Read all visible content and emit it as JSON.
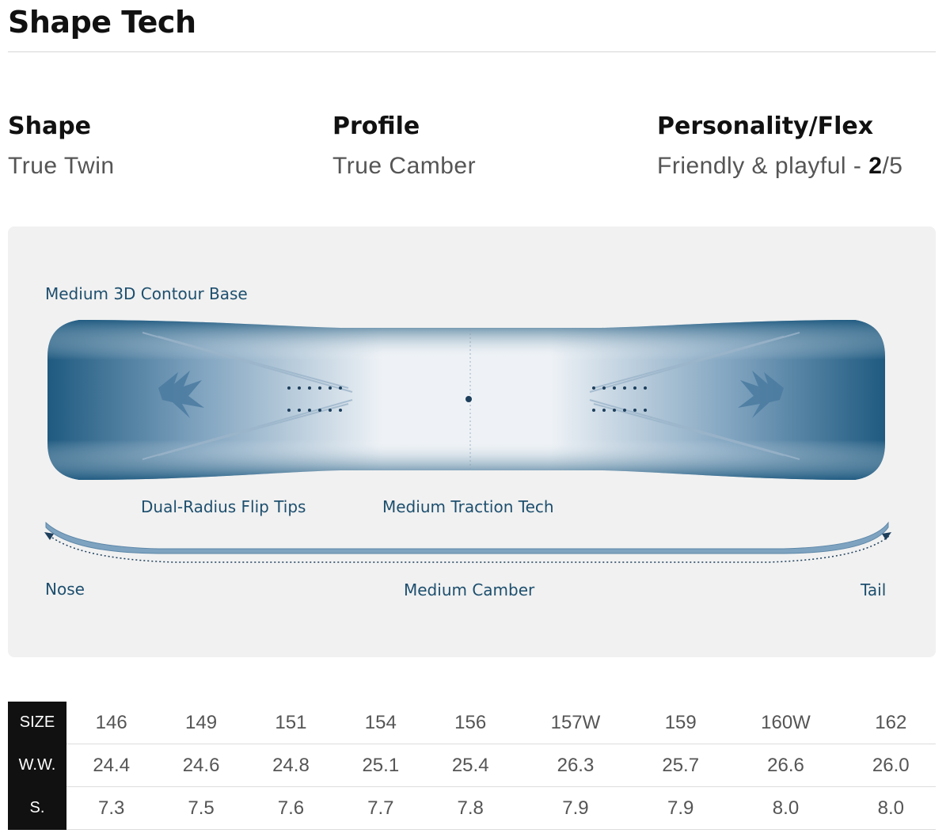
{
  "header": {
    "title": "Shape Tech"
  },
  "specs": [
    {
      "label": "Shape",
      "value": "True Twin"
    },
    {
      "label": "Profile",
      "value": "True Camber"
    },
    {
      "label": "Personality/Flex",
      "value": "Friendly & playful -",
      "rating": "2",
      "max": "/5"
    }
  ],
  "diagram": {
    "contour": "Medium 3D Contour Base",
    "tips": "Dual-Radius Flip Tips",
    "traction": "Medium Traction Tech",
    "nose": "Nose",
    "camber": "Medium Camber",
    "tail": "Tail"
  },
  "table": {
    "rows": [
      [
        "SIZE",
        "146",
        "149",
        "151",
        "154",
        "156",
        "157W",
        "159",
        "160W",
        "162"
      ],
      [
        "W.W.",
        "24.4",
        "24.6",
        "24.8",
        "25.1",
        "25.4",
        "26.3",
        "25.7",
        "26.6",
        "26.0"
      ],
      [
        "S.",
        "7.3",
        "7.5",
        "7.6",
        "7.7",
        "7.8",
        "7.9",
        "7.9",
        "8.0",
        "8.0"
      ]
    ]
  }
}
